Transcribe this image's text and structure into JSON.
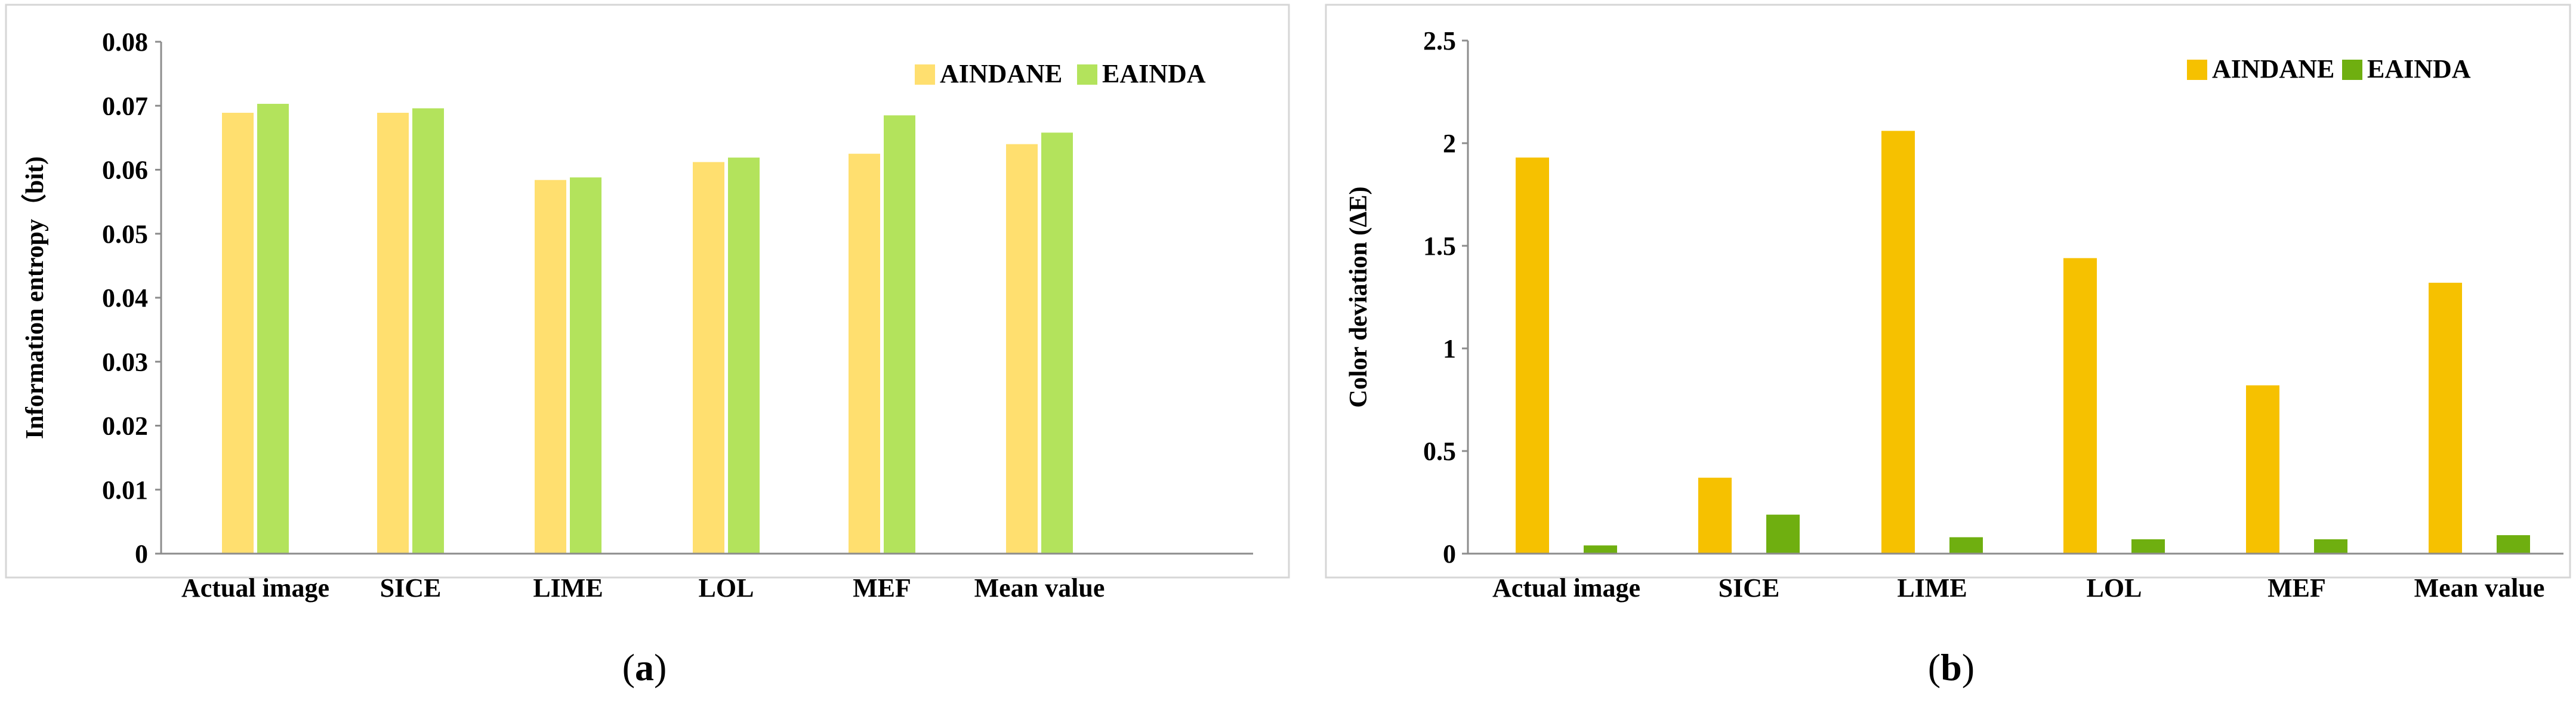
{
  "chart_data": [
    {
      "type": "bar",
      "panel_label": "a",
      "title": "",
      "xlabel": "",
      "ylabel": "Information entropy（bit)",
      "categories": [
        "Actual image",
        "SICE",
        "LIME",
        "LOL",
        "MEF",
        "Mean value"
      ],
      "series": [
        {
          "name": "AINDANE",
          "values": [
            0.0689,
            0.0689,
            0.0584,
            0.0612,
            0.0625,
            0.064
          ],
          "color": "#FFDF6F"
        },
        {
          "name": "EAINDA",
          "values": [
            0.0703,
            0.0696,
            0.0588,
            0.0619,
            0.0685,
            0.0658
          ],
          "color": "#B3E35C"
        }
      ],
      "ylim": [
        0,
        0.08
      ],
      "yticks": [
        "0",
        "0.01",
        "0.02",
        "0.03",
        "0.04",
        "0.05",
        "0.06",
        "0.07",
        "0.08"
      ],
      "grid": false,
      "legend": "top-right"
    },
    {
      "type": "bar",
      "panel_label": "b",
      "title": "",
      "xlabel": "",
      "ylabel": "Color deviation (ΔE)",
      "categories": [
        "Actual image",
        "SICE",
        "LIME",
        "LOL",
        "MEF",
        "Mean value"
      ],
      "series": [
        {
          "name": "AINDANE",
          "values": [
            1.93,
            0.37,
            2.06,
            1.44,
            0.82,
            1.32
          ],
          "color": "#F6C100"
        },
        {
          "name": "EAINDA",
          "values": [
            0.04,
            0.19,
            0.08,
            0.07,
            0.07,
            0.09
          ],
          "color": "#6FAF10"
        }
      ],
      "ylim": [
        0,
        2.5
      ],
      "yticks": [
        "0",
        "0.5",
        "1",
        "1.5",
        "2",
        "2.5"
      ],
      "grid": false,
      "legend": "top-right"
    }
  ]
}
